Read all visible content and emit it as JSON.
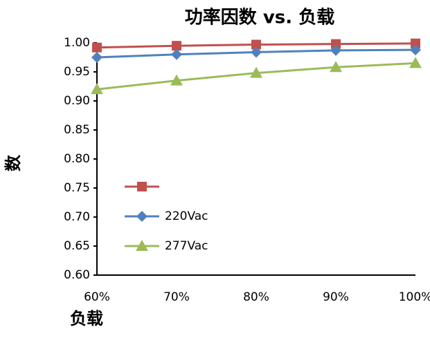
{
  "chart_data": {
    "type": "line",
    "title": "功率因数 vs. 负载",
    "x_label": "负载",
    "y_label": "数",
    "categories": [
      "60%",
      "70%",
      "80%",
      "90%",
      "100%"
    ],
    "series": [
      {
        "color": "#c0504d",
        "marker": "square",
        "values": [
          0.992,
          0.995,
          0.997,
          0.998,
          0.999
        ]
      },
      {
        "name": "220Vac",
        "color": "#4f81bd",
        "marker": "diamond",
        "values": [
          0.975,
          0.98,
          0.984,
          0.987,
          0.988
        ]
      },
      {
        "name": "277Vac",
        "color": "#9bbb59",
        "marker": "triangle",
        "values": [
          0.92,
          0.935,
          0.948,
          0.958,
          0.965
        ]
      }
    ],
    "ylim": [
      0.6,
      1.0
    ],
    "yticks": [
      {
        "value": 0.6,
        "label": "0.60"
      },
      {
        "value": 0.65,
        "label": "0.65"
      },
      {
        "value": 0.7,
        "label": "0.70"
      },
      {
        "value": 0.75,
        "label": "0.75"
      },
      {
        "value": 0.8,
        "label": "0.80"
      },
      {
        "value": 0.85,
        "label": "0.85"
      },
      {
        "value": 0.9,
        "label": "0.90"
      },
      {
        "value": 0.95,
        "label": "0.95"
      },
      {
        "value": 1.0,
        "label": "1.00"
      }
    ],
    "grid": false
  }
}
